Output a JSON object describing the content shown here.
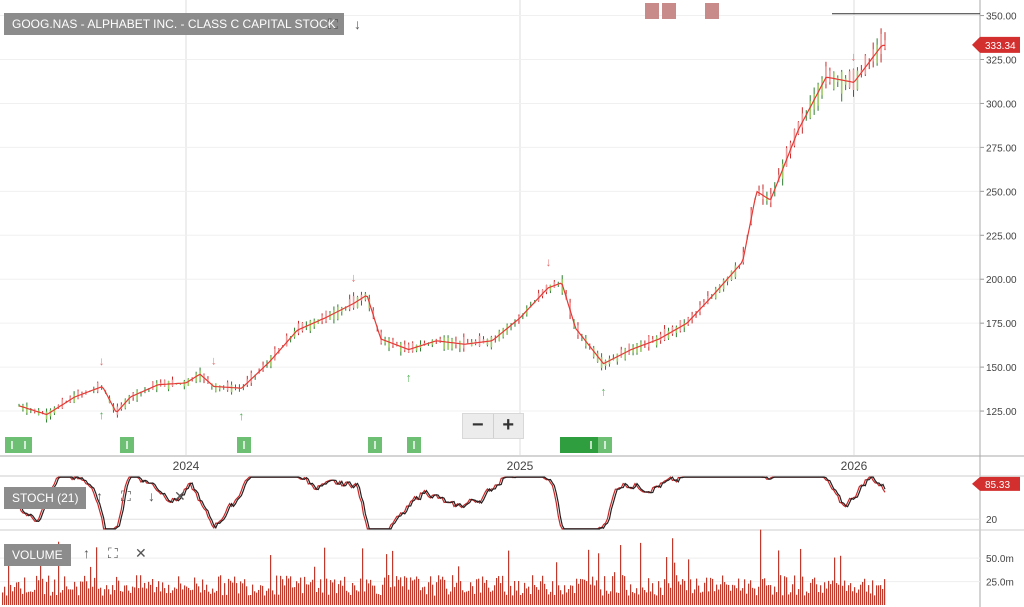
{
  "header": {
    "title": "GOOG.NAS - ALPHABET INC. - CLASS C CAPITAL STOCK",
    "last_price": "333.34"
  },
  "stoch": {
    "label": "STOCH (21)",
    "current": "85.33"
  },
  "volume": {
    "label": "VOLUME"
  },
  "zoom": {
    "minus": "−",
    "plus": "+"
  },
  "colors": {
    "price": "#e53935",
    "candle_up": "#2e7d32",
    "candle_down": "#c62828",
    "volume": "#c0392b",
    "buy": "#4caf50",
    "sell": "#e57373"
  },
  "chart_data": [
    {
      "type": "line",
      "title": "GOOG.NAS - ALPHABET INC. - CLASS C CAPITAL STOCK",
      "x_ticks": [
        "2024",
        "2025",
        "2026"
      ],
      "y_ticks": [
        "125.00",
        "150.00",
        "175.00",
        "200.00",
        "225.00",
        "250.00",
        "275.00",
        "300.00",
        "325.00",
        "350.00"
      ],
      "ylim": [
        100,
        356
      ],
      "resistance_line": 351,
      "series": [
        {
          "name": "price",
          "x": [
            "2023-07",
            "2023-08",
            "2023-09",
            "2023-10",
            "2023-10",
            "2023-11",
            "2023-12",
            "2024-01",
            "2024-01",
            "2024-02",
            "2024-03",
            "2024-04",
            "2024-05",
            "2024-06",
            "2024-07",
            "2024-07",
            "2024-08",
            "2024-09",
            "2024-10",
            "2024-11",
            "2024-12",
            "2025-01",
            "2025-02",
            "2025-02",
            "2025-03",
            "2025-04",
            "2025-05",
            "2025-06",
            "2025-07",
            "2025-08",
            "2025-09",
            "2025-09",
            "2025-10",
            "2025-11",
            "2025-12",
            "2026-01",
            "2026-02"
          ],
          "y": [
            128,
            123,
            133,
            139,
            124,
            133,
            140,
            141,
            146,
            139,
            138,
            153,
            171,
            178,
            186,
            191,
            166,
            160,
            165,
            163,
            165,
            178,
            195,
            198,
            172,
            152,
            160,
            166,
            175,
            192,
            210,
            250,
            245,
            285,
            315,
            312,
            333
          ]
        }
      ],
      "sell_signals": [
        "2023-10",
        "2024-02",
        "2024-07",
        "2025-02",
        "2026-01"
      ],
      "buy_signals": [
        "2023-10",
        "2024-03",
        "2024-09",
        "2025-04"
      ]
    },
    {
      "type": "line",
      "title": "STOCH (21)",
      "y_ticks": [
        "20"
      ],
      "ylim": [
        0,
        100
      ],
      "current": 85.33
    },
    {
      "type": "bar",
      "title": "VOLUME",
      "y_ticks": [
        "25.0m",
        "50.0m"
      ],
      "ylim": [
        0,
        80
      ]
    }
  ]
}
